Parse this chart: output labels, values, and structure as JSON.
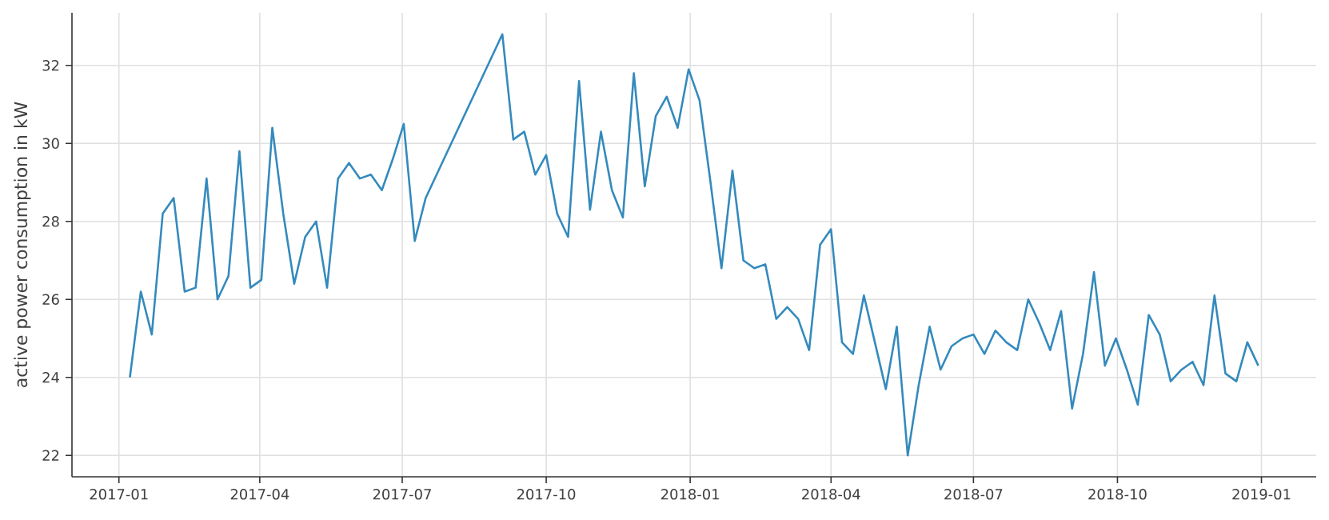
{
  "chart_data": {
    "type": "line",
    "ylabel": "active power consumption in kW",
    "x": [
      "2017-01-08",
      "2017-01-15",
      "2017-01-22",
      "2017-01-29",
      "2017-02-05",
      "2017-02-12",
      "2017-02-19",
      "2017-02-26",
      "2017-03-05",
      "2017-03-12",
      "2017-03-19",
      "2017-03-26",
      "2017-04-02",
      "2017-04-09",
      "2017-04-16",
      "2017-04-23",
      "2017-04-30",
      "2017-05-07",
      "2017-05-14",
      "2017-05-21",
      "2017-05-28",
      "2017-06-04",
      "2017-06-11",
      "2017-06-18",
      "2017-06-25",
      "2017-07-02",
      "2017-07-09",
      "2017-07-16",
      "2017-09-03",
      "2017-09-10",
      "2017-09-17",
      "2017-09-24",
      "2017-10-01",
      "2017-10-08",
      "2017-10-15",
      "2017-10-22",
      "2017-10-29",
      "2017-11-05",
      "2017-11-12",
      "2017-11-19",
      "2017-11-26",
      "2017-12-03",
      "2017-12-10",
      "2017-12-17",
      "2017-12-24",
      "2017-12-31",
      "2018-01-07",
      "2018-01-14",
      "2018-01-21",
      "2018-01-28",
      "2018-02-04",
      "2018-02-11",
      "2018-02-18",
      "2018-02-25",
      "2018-03-04",
      "2018-03-11",
      "2018-03-18",
      "2018-03-25",
      "2018-04-01",
      "2018-04-08",
      "2018-04-15",
      "2018-04-22",
      "2018-04-29",
      "2018-05-06",
      "2018-05-13",
      "2018-05-20",
      "2018-05-27",
      "2018-06-03",
      "2018-06-10",
      "2018-06-17",
      "2018-06-24",
      "2018-07-01",
      "2018-07-08",
      "2018-07-15",
      "2018-07-22",
      "2018-07-29",
      "2018-08-05",
      "2018-08-12",
      "2018-08-19",
      "2018-08-26",
      "2018-09-02",
      "2018-09-09",
      "2018-09-16",
      "2018-09-23",
      "2018-09-30",
      "2018-10-07",
      "2018-10-14",
      "2018-10-21",
      "2018-10-28",
      "2018-11-04",
      "2018-11-11",
      "2018-11-18",
      "2018-11-25",
      "2018-12-02",
      "2018-12-09",
      "2018-12-16",
      "2018-12-23",
      "2018-12-30"
    ],
    "series": [
      {
        "color": "#348abd",
        "values": [
          24.0,
          26.2,
          25.1,
          28.2,
          28.6,
          26.2,
          26.3,
          29.1,
          26.0,
          26.6,
          29.8,
          26.3,
          26.5,
          30.4,
          28.2,
          26.4,
          27.6,
          28.0,
          26.3,
          29.1,
          29.5,
          29.1,
          29.2,
          28.8,
          29.6,
          30.5,
          27.5,
          28.6,
          32.8,
          30.1,
          30.3,
          29.2,
          29.7,
          28.2,
          27.6,
          31.6,
          28.3,
          30.3,
          28.8,
          28.1,
          31.8,
          28.9,
          30.7,
          31.2,
          30.4,
          31.9,
          31.1,
          29.0,
          26.8,
          29.3,
          27.0,
          26.8,
          26.9,
          25.5,
          25.8,
          25.5,
          24.7,
          27.4,
          27.8,
          24.9,
          24.6,
          26.1,
          24.9,
          23.7,
          25.3,
          22.0,
          23.8,
          25.3,
          24.2,
          24.8,
          25.0,
          25.1,
          24.6,
          25.2,
          24.9,
          24.7,
          26.0,
          25.4,
          24.7,
          25.7,
          23.2,
          24.6,
          26.7,
          24.3,
          25.0,
          24.2,
          23.3,
          25.6,
          25.1,
          23.9,
          24.2,
          24.4,
          23.8,
          26.1,
          24.1,
          23.9,
          24.9,
          24.3
        ]
      }
    ],
    "xlim": [
      "2016-12-02",
      "2019-02-05"
    ],
    "ylim": [
      21.45,
      33.35
    ],
    "xticks": [
      {
        "value": "2017-01-01",
        "label": "2017-01"
      },
      {
        "value": "2017-04-01",
        "label": "2017-04"
      },
      {
        "value": "2017-07-01",
        "label": "2017-07"
      },
      {
        "value": "2017-10-01",
        "label": "2017-10"
      },
      {
        "value": "2018-01-01",
        "label": "2018-01"
      },
      {
        "value": "2018-04-01",
        "label": "2018-04"
      },
      {
        "value": "2018-07-01",
        "label": "2018-07"
      },
      {
        "value": "2018-10-01",
        "label": "2018-10"
      },
      {
        "value": "2019-01-01",
        "label": "2019-01"
      }
    ],
    "yticks": [
      22,
      24,
      26,
      28,
      30,
      32
    ],
    "grid": true,
    "marker": "none",
    "line_style": "solid"
  }
}
